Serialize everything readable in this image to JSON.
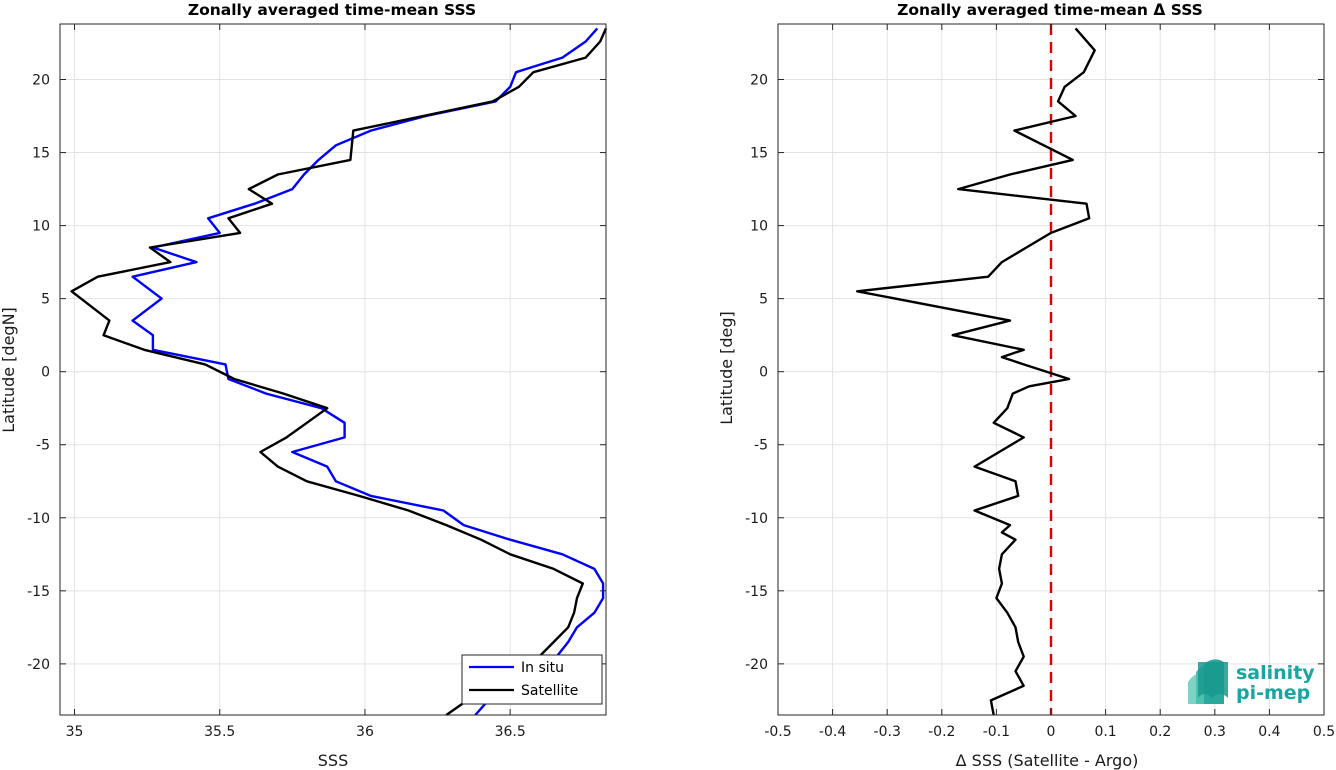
{
  "chart_data": [
    {
      "type": "line",
      "title": "Zonally averaged time-mean SSS",
      "xlabel": "SSS",
      "ylabel": "Latitude [degN]",
      "xlim": [
        34.95,
        36.83
      ],
      "ylim": [
        -23.5,
        23.8
      ],
      "xticks": [
        35,
        35.5,
        36,
        36.5
      ],
      "xtick_labels": [
        "35",
        "35.5",
        "36",
        "36.5"
      ],
      "yticks": [
        -20,
        -15,
        -10,
        -5,
        0,
        5,
        10,
        15,
        20
      ],
      "ytick_labels": [
        "-20",
        "-15",
        "-10",
        "-5",
        "0",
        "5",
        "10",
        "15",
        "20"
      ],
      "grid": true,
      "legend": "bottom-right",
      "series": [
        {
          "name": "In situ",
          "color": "#0000ff",
          "points": [
            [
              36.38,
              -23.5
            ],
            [
              36.42,
              -22.6
            ],
            [
              36.62,
              -21.0
            ],
            [
              36.66,
              -19.5
            ],
            [
              36.7,
              -18.5
            ],
            [
              36.73,
              -17.5
            ],
            [
              36.79,
              -16.5
            ],
            [
              36.82,
              -15.5
            ],
            [
              36.82,
              -14.5
            ],
            [
              36.79,
              -13.5
            ],
            [
              36.68,
              -12.5
            ],
            [
              36.5,
              -11.5
            ],
            [
              36.34,
              -10.5
            ],
            [
              36.27,
              -9.5
            ],
            [
              36.02,
              -8.5
            ],
            [
              35.9,
              -7.5
            ],
            [
              35.87,
              -6.5
            ],
            [
              35.75,
              -5.5
            ],
            [
              35.93,
              -4.5
            ],
            [
              35.93,
              -3.5
            ],
            [
              35.85,
              -2.5
            ],
            [
              35.66,
              -1.5
            ],
            [
              35.53,
              -0.5
            ],
            [
              35.52,
              0.5
            ],
            [
              35.27,
              1.5
            ],
            [
              35.27,
              2.5
            ],
            [
              35.2,
              3.5
            ],
            [
              35.3,
              5.0
            ],
            [
              35.2,
              6.5
            ],
            [
              35.42,
              7.5
            ],
            [
              35.27,
              8.5
            ],
            [
              35.5,
              9.5
            ],
            [
              35.46,
              10.5
            ],
            [
              35.62,
              11.5
            ],
            [
              35.75,
              12.5
            ],
            [
              35.79,
              13.5
            ],
            [
              35.84,
              14.5
            ],
            [
              35.9,
              15.5
            ],
            [
              36.02,
              16.5
            ],
            [
              36.21,
              17.5
            ],
            [
              36.45,
              18.5
            ],
            [
              36.5,
              19.5
            ],
            [
              36.52,
              20.5
            ],
            [
              36.6,
              21.0
            ],
            [
              36.68,
              21.5
            ],
            [
              36.76,
              22.6
            ],
            [
              36.8,
              23.5
            ]
          ]
        },
        {
          "name": "Satellite",
          "color": "#000000",
          "points": [
            [
              36.28,
              -23.5
            ],
            [
              36.46,
              -21.0
            ],
            [
              36.6,
              -19.5
            ],
            [
              36.65,
              -18.5
            ],
            [
              36.7,
              -17.5
            ],
            [
              36.72,
              -16.5
            ],
            [
              36.73,
              -15.5
            ],
            [
              36.75,
              -14.5
            ],
            [
              36.65,
              -13.5
            ],
            [
              36.5,
              -12.5
            ],
            [
              36.4,
              -11.5
            ],
            [
              36.28,
              -10.5
            ],
            [
              36.15,
              -9.5
            ],
            [
              35.98,
              -8.5
            ],
            [
              35.8,
              -7.5
            ],
            [
              35.7,
              -6.5
            ],
            [
              35.64,
              -5.5
            ],
            [
              35.73,
              -4.5
            ],
            [
              35.8,
              -3.5
            ],
            [
              35.87,
              -2.5
            ],
            [
              35.72,
              -1.5
            ],
            [
              35.55,
              -0.5
            ],
            [
              35.45,
              0.5
            ],
            [
              35.24,
              1.5
            ],
            [
              35.1,
              2.5
            ],
            [
              35.12,
              3.5
            ],
            [
              34.99,
              5.5
            ],
            [
              35.08,
              6.5
            ],
            [
              35.33,
              7.5
            ],
            [
              35.26,
              8.5
            ],
            [
              35.57,
              9.5
            ],
            [
              35.53,
              10.5
            ],
            [
              35.68,
              11.5
            ],
            [
              35.6,
              12.5
            ],
            [
              35.7,
              13.5
            ],
            [
              35.95,
              14.5
            ],
            [
              35.96,
              16.5
            ],
            [
              36.2,
              17.5
            ],
            [
              36.44,
              18.5
            ],
            [
              36.53,
              19.5
            ],
            [
              36.58,
              20.5
            ],
            [
              36.76,
              21.5
            ],
            [
              36.81,
              22.6
            ],
            [
              36.83,
              23.5
            ]
          ]
        }
      ]
    },
    {
      "type": "line",
      "title": "Zonally averaged time-mean Δ SSS",
      "xlabel": "Δ SSS (Satellite - Argo)",
      "ylabel": "Latitude [deg]",
      "xlim": [
        -0.5,
        0.5
      ],
      "ylim": [
        -23.5,
        23.8
      ],
      "xticks": [
        -0.5,
        -0.4,
        -0.3,
        -0.2,
        -0.1,
        0,
        0.1,
        0.2,
        0.3,
        0.4,
        0.5
      ],
      "xtick_labels": [
        "-0.5",
        "-0.4",
        "-0.3",
        "-0.2",
        "-0.1",
        "0",
        "0.1",
        "0.2",
        "0.3",
        "0.4",
        "0.5"
      ],
      "yticks": [
        -20,
        -15,
        -10,
        -5,
        0,
        5,
        10,
        15,
        20
      ],
      "ytick_labels": [
        "-20",
        "-15",
        "-10",
        "-5",
        "0",
        "5",
        "10",
        "15",
        "20"
      ],
      "grid": true,
      "reference_line": {
        "x": 0,
        "color": "#e00000",
        "style": "dashed"
      },
      "series": [
        {
          "color": "#000000",
          "points": [
            [
              -0.105,
              -23.5
            ],
            [
              -0.11,
              -22.5
            ],
            [
              -0.05,
              -21.5
            ],
            [
              -0.065,
              -20.5
            ],
            [
              -0.05,
              -19.5
            ],
            [
              -0.06,
              -18.5
            ],
            [
              -0.065,
              -17.5
            ],
            [
              -0.08,
              -16.5
            ],
            [
              -0.1,
              -15.5
            ],
            [
              -0.09,
              -14.5
            ],
            [
              -0.095,
              -13.5
            ],
            [
              -0.09,
              -12.5
            ],
            [
              -0.065,
              -11.5
            ],
            [
              -0.09,
              -11.0
            ],
            [
              -0.075,
              -10.5
            ],
            [
              -0.14,
              -9.5
            ],
            [
              -0.06,
              -8.5
            ],
            [
              -0.065,
              -7.5
            ],
            [
              -0.14,
              -6.5
            ],
            [
              -0.05,
              -4.5
            ],
            [
              -0.105,
              -3.5
            ],
            [
              -0.08,
              -2.5
            ],
            [
              -0.07,
              -1.5
            ],
            [
              -0.04,
              -1.0
            ],
            [
              0.033,
              -0.5
            ],
            [
              -0.05,
              0.5
            ],
            [
              -0.09,
              1.0
            ],
            [
              -0.05,
              1.5
            ],
            [
              -0.18,
              2.5
            ],
            [
              -0.075,
              3.5
            ],
            [
              -0.355,
              5.5
            ],
            [
              -0.115,
              6.5
            ],
            [
              -0.09,
              7.5
            ],
            [
              -0.045,
              8.5
            ],
            [
              0.0,
              9.5
            ],
            [
              0.07,
              10.5
            ],
            [
              0.065,
              11.5
            ],
            [
              -0.17,
              12.5
            ],
            [
              -0.075,
              13.5
            ],
            [
              0.04,
              14.5
            ],
            [
              -0.067,
              16.5
            ],
            [
              0.045,
              17.5
            ],
            [
              0.013,
              18.5
            ],
            [
              0.025,
              19.5
            ],
            [
              0.06,
              20.5
            ],
            [
              0.08,
              22.0
            ],
            [
              0.045,
              23.5
            ]
          ]
        }
      ]
    }
  ],
  "branding": {
    "line1": "salinity",
    "line2": "pi-mep",
    "color": "#1aa6a0"
  }
}
